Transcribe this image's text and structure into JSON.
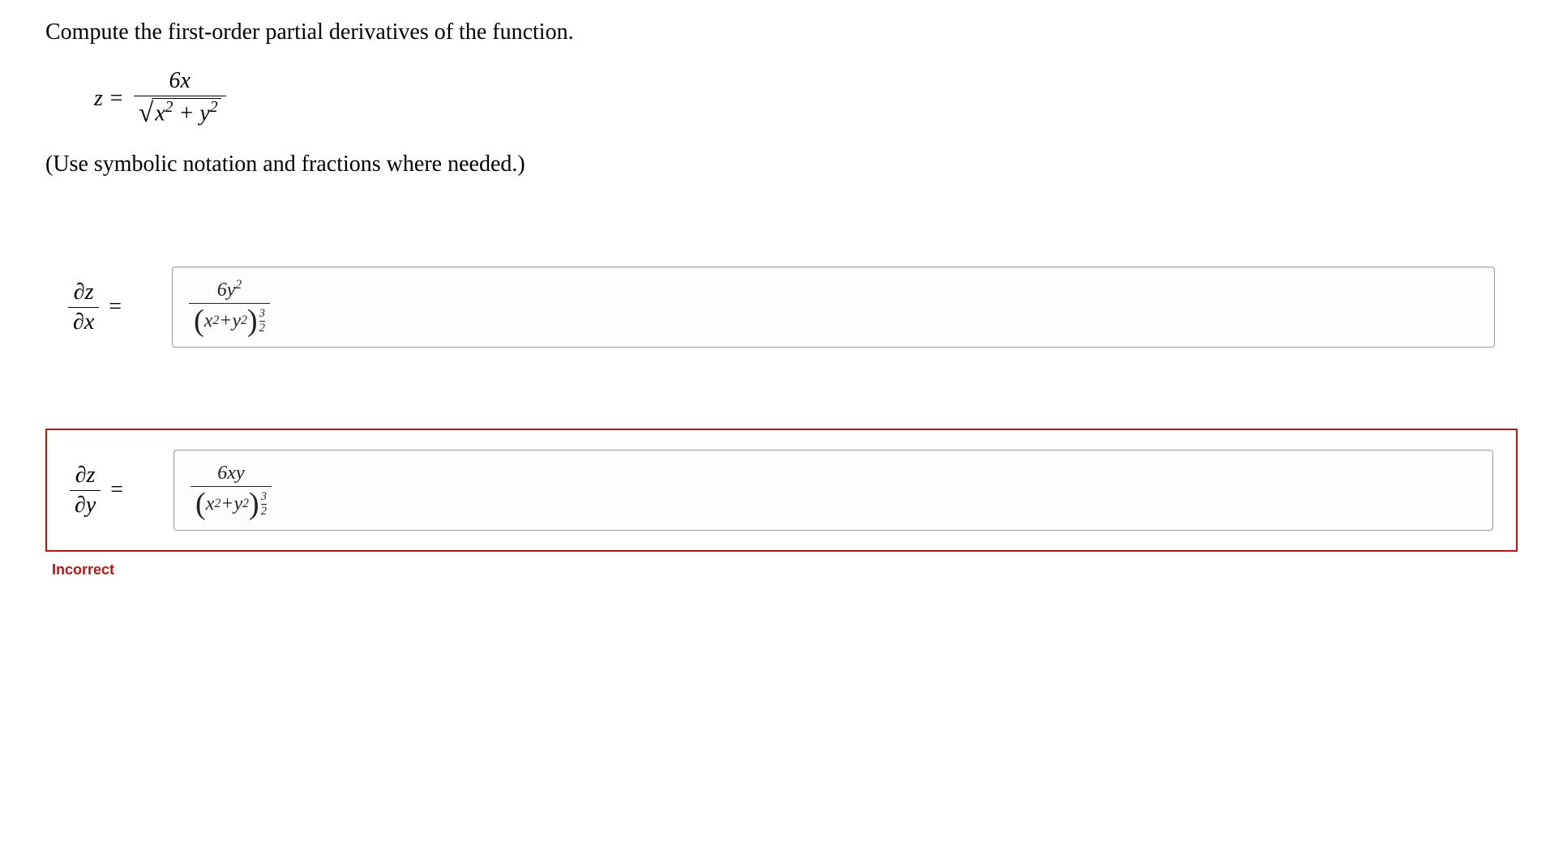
{
  "prompt": "Compute the first-order partial derivatives of the function.",
  "equation": {
    "lhs": "z =",
    "numerator": "6x",
    "radicand_terms": [
      "x",
      "2",
      " + ",
      "y",
      "2"
    ]
  },
  "instruction": "(Use symbolic notation and fractions where needed.)",
  "answers": [
    {
      "derivative_num": "∂z",
      "derivative_den": "∂x",
      "input_numerator": "6y",
      "input_numerator_sup": "2",
      "input_base_a": "x",
      "input_base_a_sup": "2",
      "input_plus": " + ",
      "input_base_b": "y",
      "input_base_b_sup": "2",
      "input_exp_num": "3",
      "input_exp_den": "2",
      "incorrect": false
    },
    {
      "derivative_num": "∂z",
      "derivative_den": "∂y",
      "input_numerator": "6xy",
      "input_numerator_sup": "",
      "input_base_a": "x",
      "input_base_a_sup": "2",
      "input_plus": " + ",
      "input_base_b": "y",
      "input_base_b_sup": "2",
      "input_exp_num": "3",
      "input_exp_den": "2",
      "incorrect": true
    }
  ],
  "labels": {
    "equals": "=",
    "incorrect": "Incorrect"
  },
  "colors": {
    "text": "#000000",
    "background": "#ffffff",
    "input_border": "#9e9e9e",
    "input_bg": "#fdfdfd",
    "error": "#b01818"
  }
}
